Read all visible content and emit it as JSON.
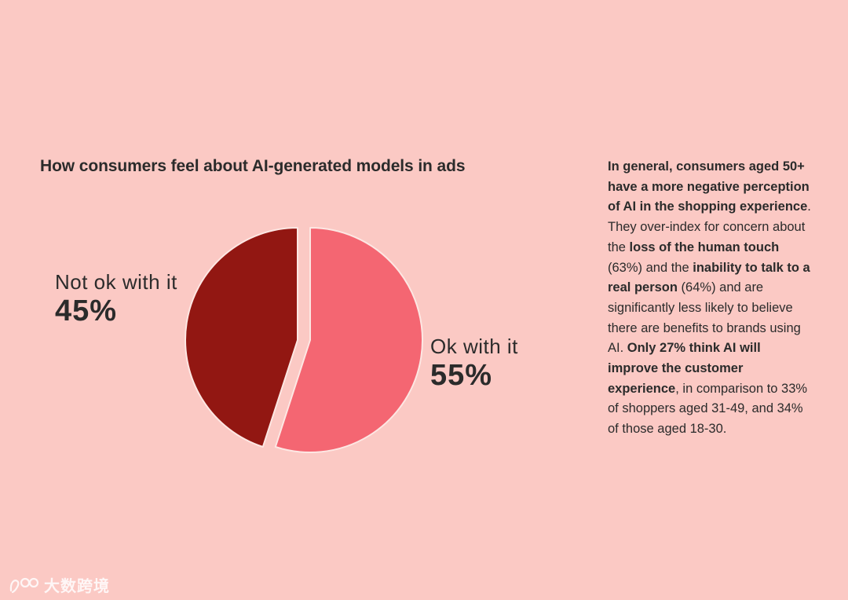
{
  "chart_data": {
    "type": "pie",
    "title": "How consumers feel about AI-generated models in ads",
    "slices": [
      {
        "label": "Ok with it",
        "value": 55,
        "display": "55%",
        "color": "#f46672"
      },
      {
        "label": "Not ok with it",
        "value": 45,
        "display": "45%",
        "color": "#921712"
      }
    ],
    "start": "12 o'clock, clockwise",
    "highlighted_slice": "Ok with it (pulled out)"
  },
  "side_text": {
    "segments": [
      {
        "text": "In general, consumers aged 50+ have a more negative perception of AI in the shopping experience",
        "bold": true
      },
      {
        "text": ". They over-index for concern about the ",
        "bold": false
      },
      {
        "text": "loss of the human touch",
        "bold": true
      },
      {
        "text": " (63%) and the ",
        "bold": false
      },
      {
        "text": "inability to talk to a real person",
        "bold": true
      },
      {
        "text": " (64%) and are significantly less likely to believe there are benefits to brands using AI. ",
        "bold": false
      },
      {
        "text": "Only 27% think AI will improve the customer experience",
        "bold": true
      },
      {
        "text": ", in comparison to 33% of shoppers aged 31-49, and 34% of those aged 18-30.",
        "bold": false
      }
    ]
  },
  "watermark": {
    "text": "大数跨境",
    "icon": "brand-logo-icon"
  }
}
